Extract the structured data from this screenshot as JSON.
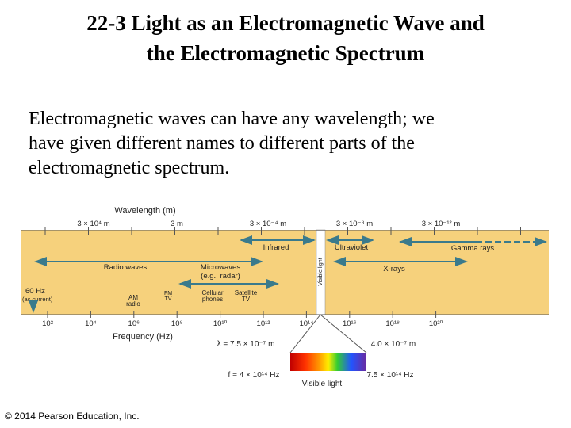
{
  "title": {
    "lines": [
      "22-3 Light as an Electromagnetic Wave and",
      "the Electromagnetic Spectrum"
    ]
  },
  "body": {
    "lines": [
      "Electromagnetic waves can have any wavelength; we",
      "have given different names to different parts of the",
      "electromagnetic spectrum."
    ]
  },
  "figure": {
    "wavelength_label": "Wavelength (m)",
    "wavelength_ticks": [
      "3 × 10⁴ m",
      "3 m",
      "3 × 10⁻⁴ m",
      "3 × 10⁻⁸ m",
      "3 × 10⁻¹² m"
    ],
    "frequency_label": "Frequency (Hz)",
    "frequency_ticks": [
      "10²",
      "10⁴",
      "10⁶",
      "10⁸",
      "10¹⁰",
      "10¹²",
      "10¹⁴",
      "10¹⁶",
      "10¹⁸",
      "10²⁰"
    ],
    "bands": {
      "infrared": "Infrared",
      "ultraviolet": "Ultraviolet",
      "radio": "Radio waves",
      "microwaves": [
        "Microwaves",
        "(e.g., radar)"
      ],
      "xrays": "X-rays",
      "gamma": "Gamma rays",
      "visible": "Visible light"
    },
    "sources": {
      "ac": [
        "60 Hz",
        "(ac current)"
      ],
      "am": [
        "AM",
        "radio"
      ],
      "fm": [
        "FM",
        "TV"
      ],
      "cell": [
        "Cellular",
        "phones"
      ],
      "sat": [
        "Satellite",
        "TV"
      ]
    },
    "visible": {
      "long_wavelength": "λ = 7.5 × 10⁻⁷ m",
      "short_wavelength": "4.0 × 10⁻⁷ m",
      "low_frequency": "f = 4 × 10¹⁴ Hz",
      "high_frequency": "7.5 × 10¹⁴ Hz",
      "label": "Visible light"
    }
  },
  "footer": "© 2014 Pearson Education, Inc."
}
